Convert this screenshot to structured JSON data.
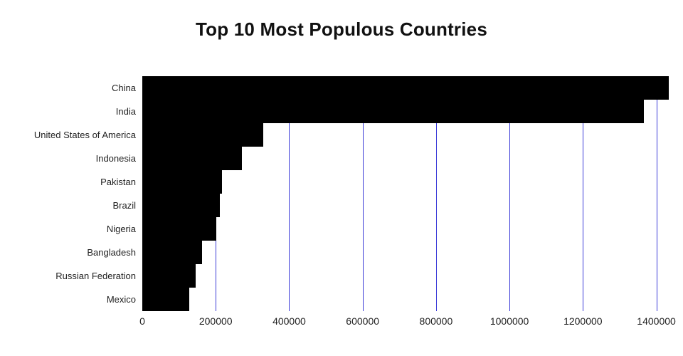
{
  "title": "Top 10 Most Populous Countries",
  "chart_data": {
    "type": "bar",
    "orientation": "horizontal",
    "title": "Top 10 Most Populous Countries",
    "xlabel": "",
    "ylabel": "",
    "categories": [
      "China",
      "India",
      "United States of America",
      "Indonesia",
      "Pakistan",
      "Brazil",
      "Nigeria",
      "Bangladesh",
      "Russian Federation",
      "Mexico"
    ],
    "values": [
      1433783,
      1366417,
      329064,
      270625,
      216565,
      211049,
      200963,
      163046,
      145872,
      127575
    ],
    "xlim": [
      0,
      1433783
    ],
    "xticks": [
      0,
      200000,
      400000,
      600000,
      800000,
      1000000,
      1200000,
      1400000
    ],
    "xtick_labels": [
      "0",
      "200000",
      "400000",
      "600000",
      "800000",
      "1000000",
      "1200000",
      "1400000"
    ],
    "grid": true,
    "legend": false,
    "bar_color": "#000000",
    "gridline_color": "#3b3bd8",
    "text_color": "#222222",
    "background_color": "#ffffff"
  }
}
